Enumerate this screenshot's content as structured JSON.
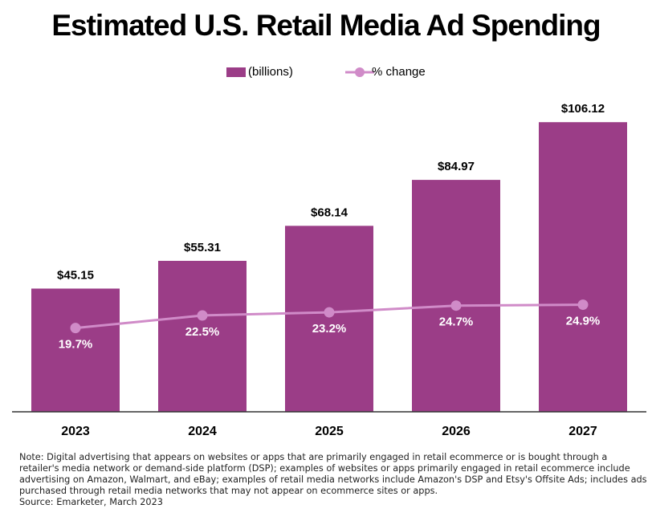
{
  "chart_data": {
    "type": "bar-line",
    "title": "Estimated U.S. Retail Media Ad Spending",
    "categories": [
      "2023",
      "2024",
      "2025",
      "2026",
      "2027"
    ],
    "ylim": [
      0,
      110
    ],
    "y2lim": [
      1,
      68
    ],
    "series": [
      {
        "name": "(billions)",
        "type": "bar",
        "color": "#9b3d87",
        "values": [
          45.15,
          55.31,
          68.14,
          84.97,
          106.12
        ],
        "value_labels": [
          "$45.15",
          "$55.31",
          "$68.14",
          "$84.97",
          "$106.12"
        ]
      },
      {
        "name": "% change",
        "type": "line",
        "axis": "y2",
        "color": "#d08bc8",
        "values": [
          19.7,
          22.5,
          23.2,
          24.7,
          24.9
        ],
        "value_labels": [
          "19.7%",
          "22.5%",
          "23.2%",
          "24.7%",
          "24.9%"
        ]
      }
    ],
    "note": "Note: Digital advertising that appears on websites or apps that are primarily engaged in retail ecommerce or is bought through a retailer's media network or demand-side platform (DSP); examples of websites or apps primarily engaged in retail ecommerce include advertising on Amazon, Walmart, and eBay; examples of retail media networks include Amazon's DSP and Etsy's Offsite Ads; includes ads purchased through retail media networks that may not appear on ecommerce sites or apps.",
    "source": "Source: Emarketer, March 2023"
  }
}
